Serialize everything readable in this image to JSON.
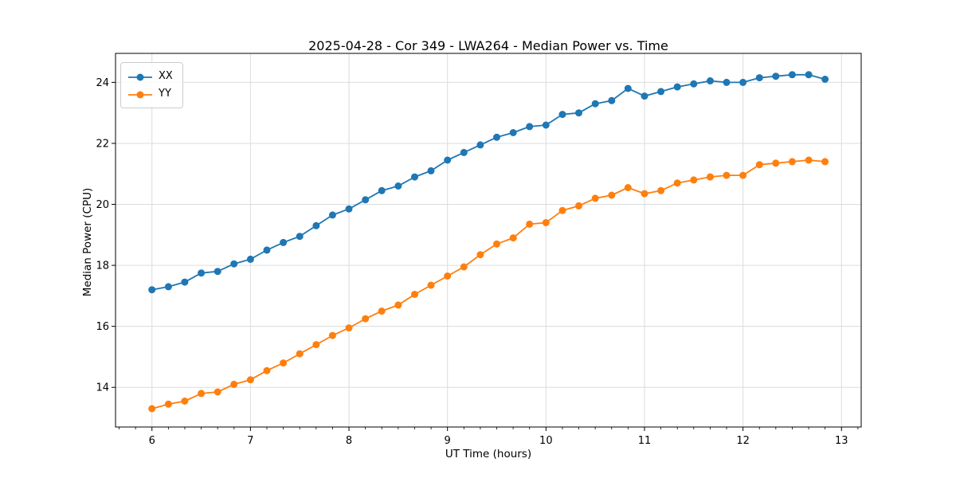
{
  "figure": {
    "title": "2025-04-28 - Cor 349 - LWA264 - Median Power vs. Time",
    "background": "#ffffff"
  },
  "chart_data": {
    "type": "line",
    "title": "2025-04-28 - Cor 349 - LWA264 - Median Power vs. Time",
    "xlabel": "UT Time (hours)",
    "ylabel": "Median Power (CPU)",
    "xlim": [
      5.63,
      13.2
    ],
    "ylim": [
      12.7,
      24.95
    ],
    "xticks": [
      6,
      7,
      8,
      9,
      10,
      11,
      12,
      13
    ],
    "yticks": [
      14,
      16,
      18,
      20,
      22,
      24
    ],
    "x_minor_tick_step": 0.1667,
    "grid": true,
    "grid_color": "#dcdcdc",
    "spine_color": "#000000",
    "legend_position": "upper left",
    "x": [
      6.0,
      6.167,
      6.333,
      6.5,
      6.667,
      6.833,
      7.0,
      7.167,
      7.333,
      7.5,
      7.667,
      7.833,
      8.0,
      8.167,
      8.333,
      8.5,
      8.667,
      8.833,
      9.0,
      9.167,
      9.333,
      9.5,
      9.667,
      9.833,
      10.0,
      10.167,
      10.333,
      10.5,
      10.667,
      10.833,
      11.0,
      11.167,
      11.333,
      11.5,
      11.667,
      11.833,
      12.0,
      12.167,
      12.333,
      12.5,
      12.667,
      12.833
    ],
    "series": [
      {
        "name": "XX",
        "color": "#1f77b4",
        "values": [
          17.2,
          17.3,
          17.45,
          17.75,
          17.8,
          18.05,
          18.2,
          18.5,
          18.75,
          18.95,
          19.3,
          19.65,
          19.85,
          20.15,
          20.45,
          20.6,
          20.9,
          21.1,
          21.45,
          21.7,
          21.95,
          22.2,
          22.35,
          22.55,
          22.6,
          22.95,
          23.0,
          23.3,
          23.4,
          23.8,
          23.55,
          23.7,
          23.85,
          23.95,
          24.05,
          24.0,
          24.0,
          24.15,
          24.2,
          24.25,
          24.25,
          24.1
        ]
      },
      {
        "name": "YY",
        "color": "#ff7f0e",
        "values": [
          13.3,
          13.45,
          13.55,
          13.8,
          13.85,
          14.1,
          14.25,
          14.55,
          14.8,
          15.1,
          15.4,
          15.7,
          15.95,
          16.25,
          16.5,
          16.7,
          17.05,
          17.35,
          17.65,
          17.95,
          18.35,
          18.7,
          18.9,
          19.35,
          19.4,
          19.8,
          19.95,
          20.2,
          20.3,
          20.55,
          20.35,
          20.45,
          20.7,
          20.8,
          20.9,
          20.95,
          20.95,
          21.3,
          21.35,
          21.4,
          21.45,
          21.4
        ]
      }
    ]
  }
}
